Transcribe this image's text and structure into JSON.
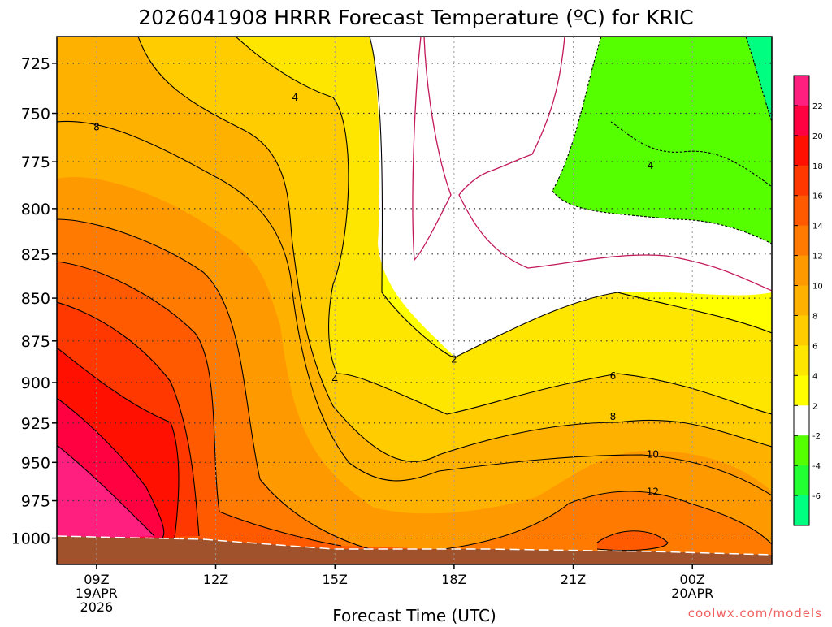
{
  "chart_data": {
    "type": "heatmap",
    "title": "2026041908 HRRR Forecast Temperature (ºC) for KRIC",
    "xlabel": "Forecast Time (UTC)",
    "ylabel": "",
    "x_ticks": [
      {
        "value": 9,
        "label": "09Z",
        "label2": "19APR",
        "label3": "2026"
      },
      {
        "value": 12,
        "label": "12Z"
      },
      {
        "value": 15,
        "label": "15Z"
      },
      {
        "value": 18,
        "label": "18Z"
      },
      {
        "value": 21,
        "label": "21Z"
      },
      {
        "value": 24,
        "label": "00Z",
        "label2": "20APR"
      }
    ],
    "xlim": [
      8,
      26
    ],
    "y_ticks": [
      725,
      750,
      775,
      800,
      825,
      850,
      875,
      900,
      925,
      950,
      975,
      1000
    ],
    "ylim": [
      1018,
      712
    ],
    "y_scale": "log-pressure",
    "grid": true,
    "colorbar": {
      "labels": [
        "22",
        "20",
        "18",
        "16",
        "14",
        "12",
        "10",
        "8",
        "6",
        "4",
        "2",
        "-2",
        "-4",
        "-6"
      ],
      "colors": [
        "#ff1f7f",
        "#ff0040",
        "#ff1000",
        "#ff3800",
        "#ff5a00",
        "#ff7a00",
        "#ff9900",
        "#ffb100",
        "#ffcc00",
        "#ffe600",
        "#ffff00",
        "#ffffff",
        "#55ff00",
        "#22ff33",
        "#00ff80"
      ]
    },
    "contour_labels": [
      {
        "text": "8",
        "x": 9.0,
        "p": 757
      },
      {
        "text": "4",
        "x": 14.0,
        "p": 742
      },
      {
        "text": "4",
        "x": 15.0,
        "p": 898
      },
      {
        "text": "2",
        "x": 18.0,
        "p": 886
      },
      {
        "text": "-4",
        "x": 22.9,
        "p": 777
      },
      {
        "text": "6",
        "x": 22.0,
        "p": 896
      },
      {
        "text": "8",
        "x": 22.0,
        "p": 921
      },
      {
        "text": "10",
        "x": 23.0,
        "p": 945
      },
      {
        "text": "12",
        "x": 23.0,
        "p": 969
      }
    ],
    "ground": "terrain (brown)"
  },
  "watermark": "coolwx.com/models"
}
